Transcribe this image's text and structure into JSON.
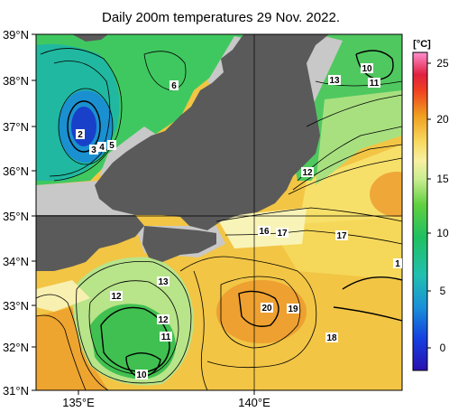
{
  "title": "Daily 200m temperatures 29 Nov. 2022.",
  "unit": "[°C]",
  "lat_labels": [
    "39°N",
    "38°N",
    "37°N",
    "36°N",
    "35°N",
    "34°N",
    "33°N",
    "32°N",
    "31°N"
  ],
  "lon_labels": [
    "135°E",
    "140°E"
  ],
  "colorbar_ticks": [
    "25",
    "20",
    "15",
    "10",
    "5",
    "0"
  ],
  "contour_labels": {
    "l1": "10",
    "l2": "11",
    "l3": "13",
    "l4": "6",
    "l5": "2",
    "l6": "3",
    "l7": "4",
    "l8": "5",
    "l9": "12",
    "l10": "16",
    "l11": "17",
    "l12": "17",
    "l13": "1",
    "l14": "12",
    "l15": "13",
    "l16": "12",
    "l17": "11",
    "l18": "10",
    "l19": "20",
    "l20": "19",
    "l21": "18"
  },
  "colors": {
    "land": "#5a5a5a",
    "missing": "#c8c8c8",
    "warm": "#f2c040",
    "cold": "#1f5fc8"
  }
}
